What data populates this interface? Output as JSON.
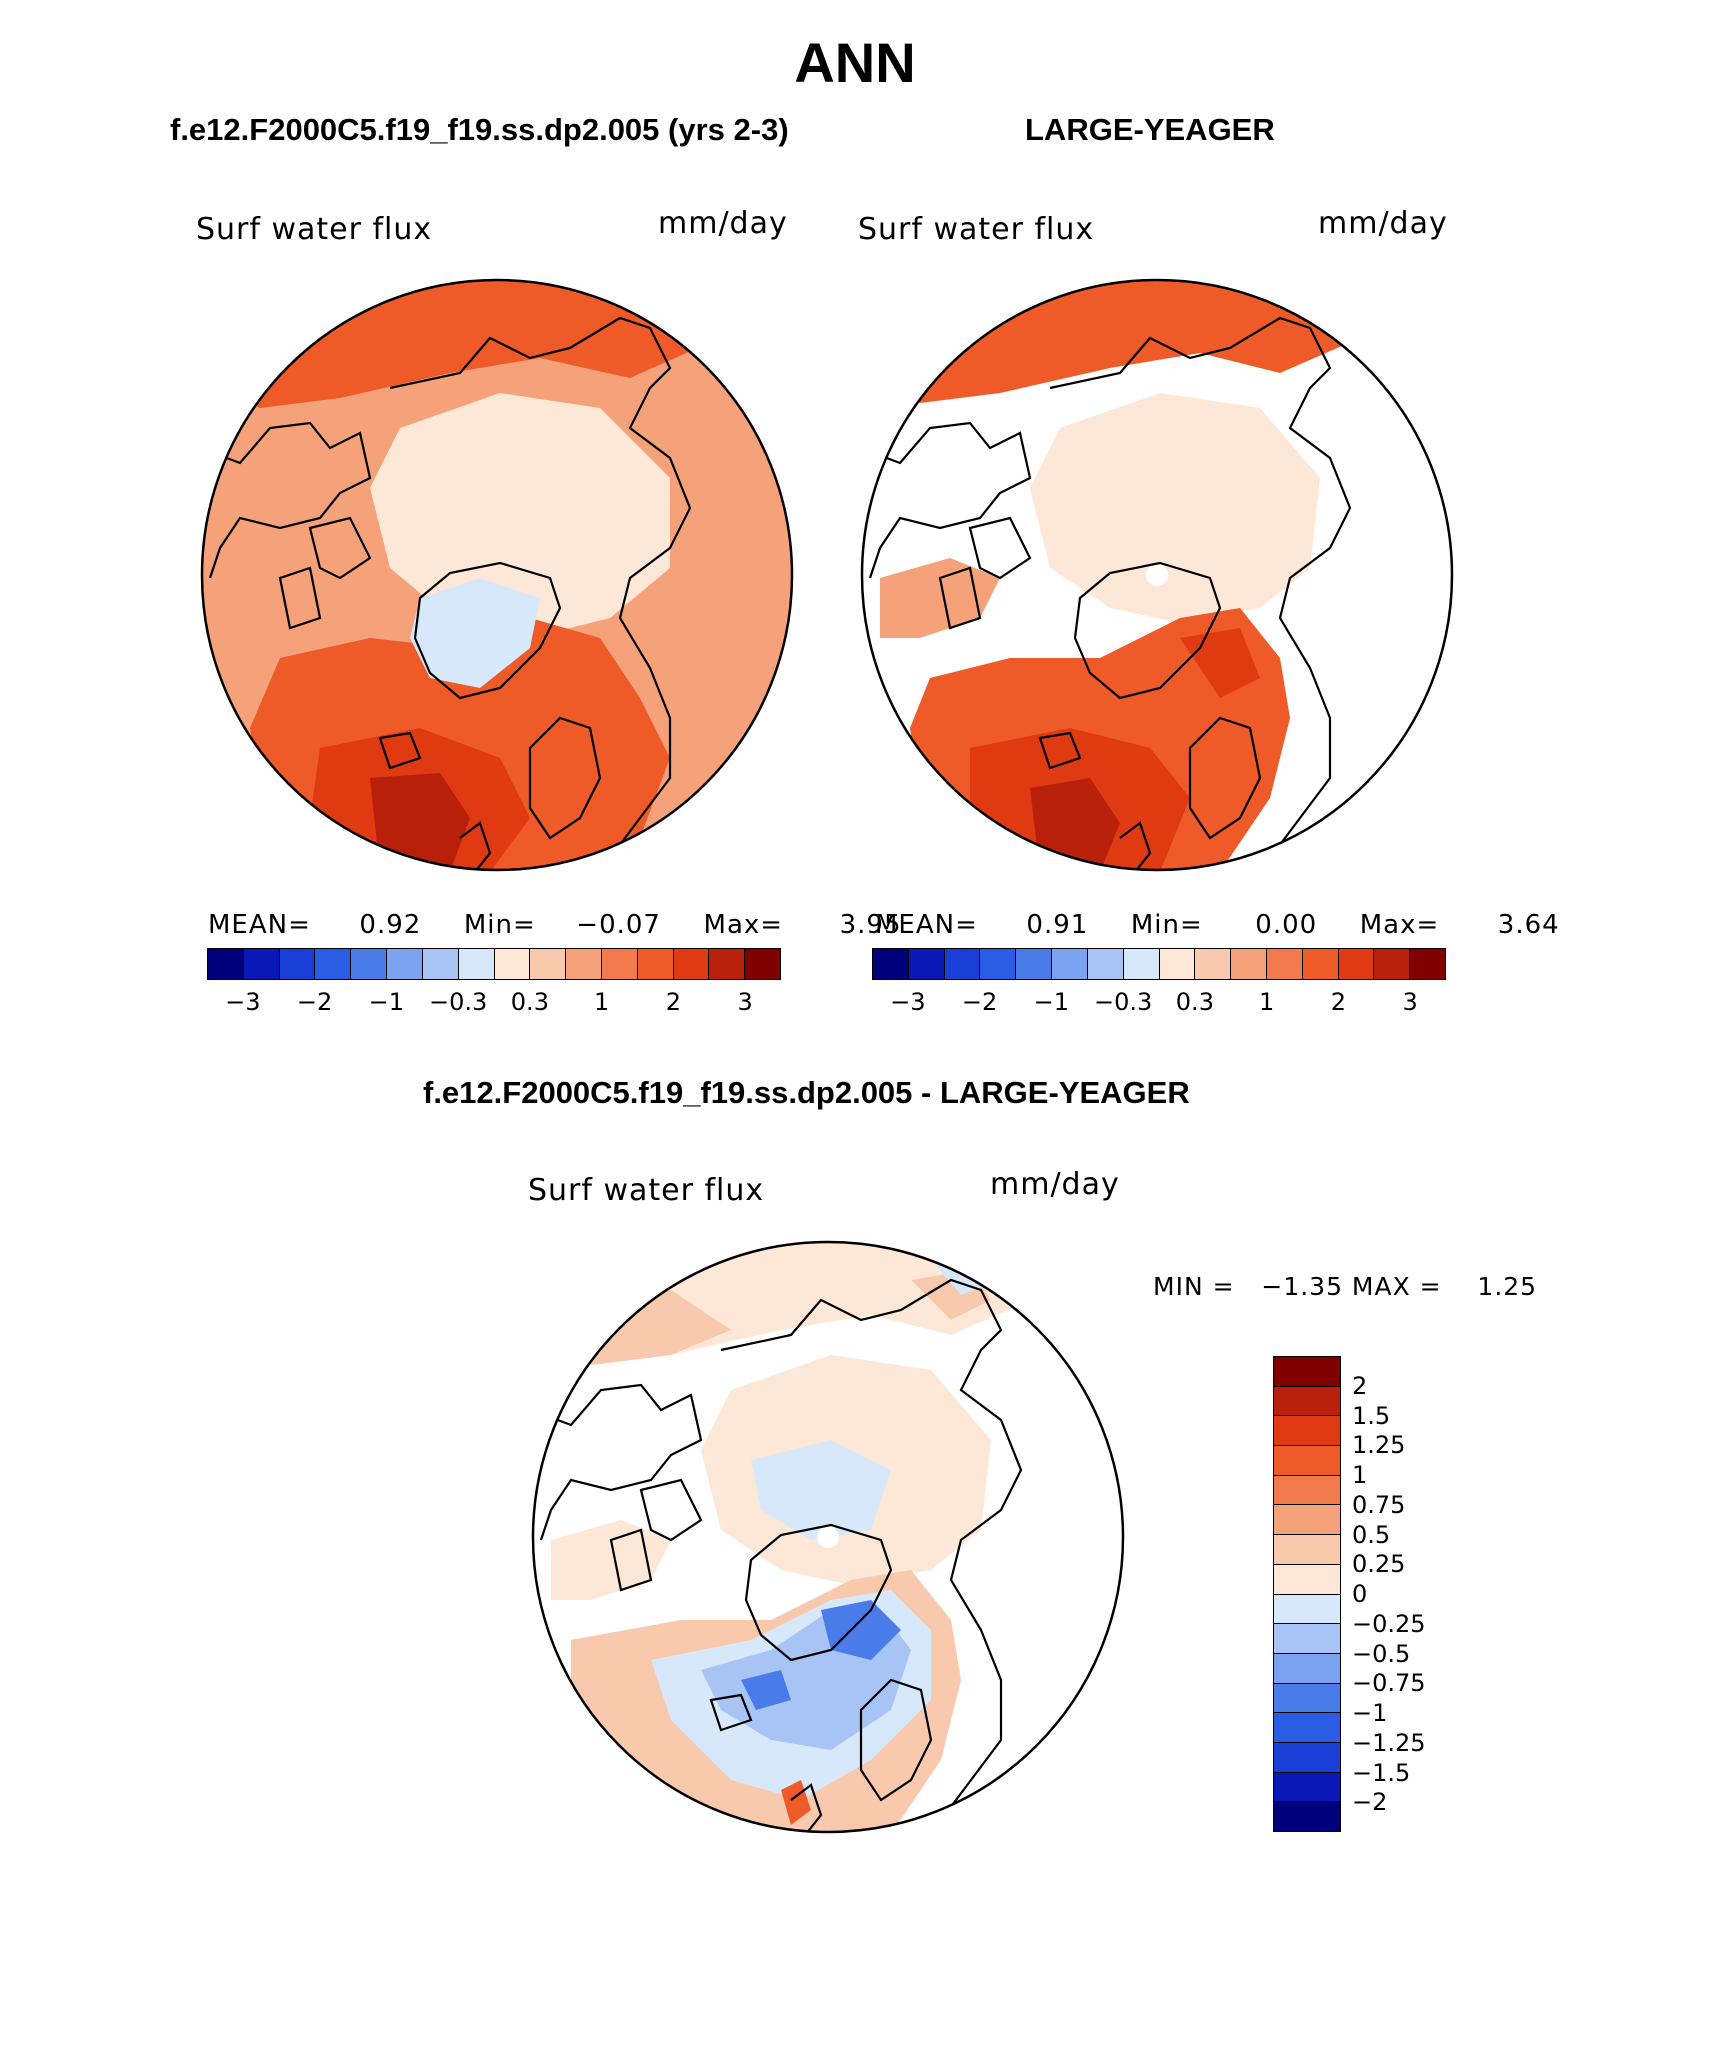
{
  "title": "ANN",
  "panels": {
    "left": {
      "case_title": "f.e12.F2000C5.f19_f19.ss.dp2.005 (yrs 2-3)",
      "variable": "Surf water flux",
      "units": "mm/day",
      "mean_label": "MEAN=",
      "mean_value": "0.92",
      "min_label": "Min=",
      "min_value": "−0.07",
      "max_label": "Max=",
      "max_value": "3.95"
    },
    "right": {
      "case_title": "LARGE-YEAGER",
      "variable": "Surf water flux",
      "units": "mm/day",
      "mean_label": "MEAN=",
      "mean_value": "0.91",
      "min_label": "Min=",
      "min_value": "0.00",
      "max_label": "Max=",
      "max_value": "3.64"
    },
    "diff": {
      "case_title": "f.e12.F2000C5.f19_f19.ss.dp2.005 - LARGE-YEAGER",
      "variable": "Surf water flux",
      "units": "mm/day",
      "minmax_text": "MIN =   −1.35 MAX =    1.25"
    }
  },
  "colorbar_abs": {
    "colors": [
      "#00007a",
      "#0a18b8",
      "#1a3fd6",
      "#2a5ce6",
      "#4a7ce9",
      "#7aa2ee",
      "#a8c4f4",
      "#d8e8fb",
      "#fde8d8",
      "#f9c9ad",
      "#f5a27a",
      "#f27a4c",
      "#ee5a28",
      "#df3a12",
      "#b8200c",
      "#800000"
    ],
    "tick_labels": [
      "−3",
      "−2",
      "−1",
      "−0.3",
      "0.3",
      "1",
      "2",
      "3"
    ]
  },
  "colorbar_diff": {
    "colors": [
      "#800000",
      "#b8200c",
      "#df3a12",
      "#ee5a28",
      "#f27a4c",
      "#f5a27a",
      "#f9c9ad",
      "#fde8d8",
      "#d8e8fb",
      "#a8c4f4",
      "#7aa2ee",
      "#4a7ce9",
      "#2a5ce6",
      "#1a3fd6",
      "#0a18b8",
      "#00007a"
    ],
    "labels": [
      "2",
      "1.5",
      "1.25",
      "1",
      "0.75",
      "0.5",
      "0.25",
      "0",
      "−0.25",
      "−0.5",
      "−0.75",
      "−1",
      "−1.25",
      "−1.5",
      "−2"
    ]
  },
  "field_colors": {
    "land": "#ffffff",
    "arctic": "#fde8d8",
    "subpolar_abs": "#f5a27a",
    "storm_track": "#ee5a28",
    "storm_core": "#df3a12",
    "max_core": "#b8200c",
    "greenland_neg": "#d8e8fb",
    "diff_pos": "#fde8d8",
    "diff_pos2": "#f9c9ad",
    "diff_neg": "#d8e8fb",
    "diff_neg2": "#a8c4f4",
    "diff_neg3": "#4a7ce9",
    "diff_strong_pos": "#ee5a28"
  }
}
